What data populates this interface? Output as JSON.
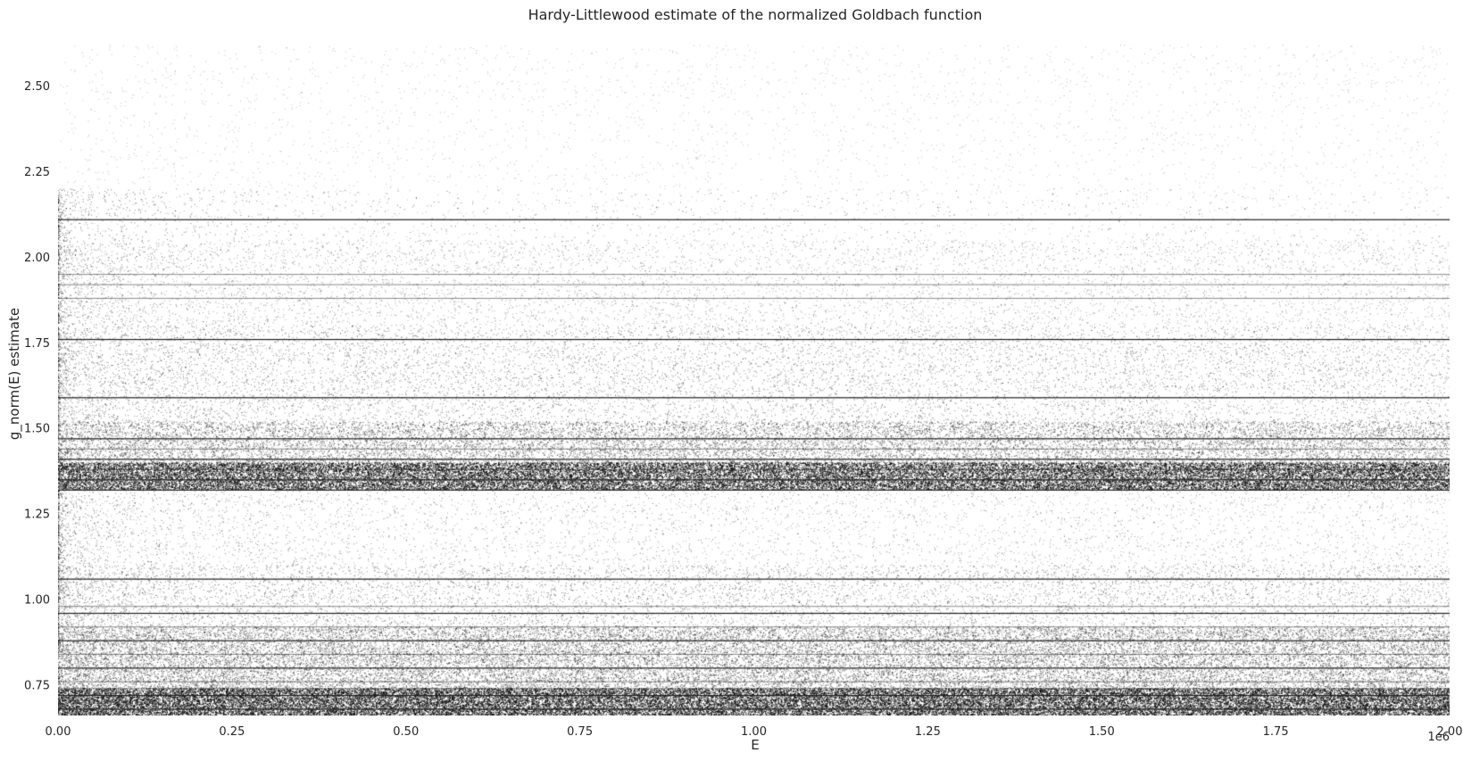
{
  "chart_data": {
    "type": "scatter",
    "title": "Hardy-Littlewood estimate of the normalized Goldbach function",
    "xlabel": "E",
    "ylabel": "g_norm(E) estimate",
    "x_offset_text": "1e6",
    "xlim": [
      0,
      2000000
    ],
    "ylim": [
      0.66,
      2.62
    ],
    "xticks": [
      0,
      250000,
      500000,
      750000,
      1000000,
      1250000,
      1500000,
      1750000,
      2000000
    ],
    "xtick_labels": [
      "0.00",
      "0.25",
      "0.50",
      "0.75",
      "1.00",
      "1.25",
      "1.50",
      "1.75",
      "2.00"
    ],
    "yticks": [
      0.75,
      1.0,
      1.25,
      1.5,
      1.75,
      2.0,
      2.25,
      2.5
    ],
    "ytick_labels": [
      "0.75",
      "1.00",
      "1.25",
      "1.50",
      "1.75",
      "2.00",
      "2.25",
      "2.50"
    ],
    "grid": false,
    "marker_color": "#000000",
    "dominant_bands_y": [
      0.66,
      0.68,
      0.72,
      0.8,
      0.88,
      0.96,
      1.06,
      1.32,
      1.35,
      1.41,
      1.47,
      1.59,
      1.76,
      2.11
    ],
    "note_density": "dense point cloud concentrated at y between 0.66 and 0.9 and between 1.32 and 1.5, sparser above"
  }
}
